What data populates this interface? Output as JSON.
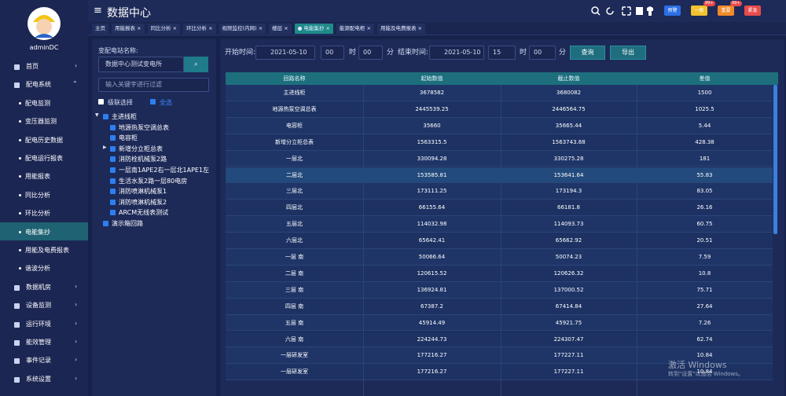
{
  "sidebar": {
    "username": "adminDC",
    "menu": [
      {
        "label": "首页"
      },
      {
        "label": "配电系统",
        "children": [
          "配电监测",
          "变压器监测",
          "配电历史数据",
          "配电运行报表",
          "用能报表",
          "同比分析",
          "环比分析",
          "电能集抄",
          "用能及电费报表",
          "谐波分析"
        ]
      },
      {
        "label": "数据机房"
      },
      {
        "label": "设备监测"
      },
      {
        "label": "运行环境"
      },
      {
        "label": "能效管理"
      },
      {
        "label": "事件记录"
      },
      {
        "label": "系统设置"
      }
    ]
  },
  "topbar": {
    "title": "数据中心",
    "buttons": [
      {
        "label": "预警"
      },
      {
        "label": "一般",
        "badge": "99+"
      },
      {
        "label": "重要",
        "badge": "99+"
      },
      {
        "label": "紧急"
      }
    ]
  },
  "tabs": [
    "主页",
    "用能报表",
    "同比分析",
    "环比分析",
    "视频监控(内网)",
    "楼层",
    "电能集抄",
    "能源配电柜",
    "用能及电费报表"
  ],
  "station_panel": {
    "label": "变配电站名称:",
    "station": "数据中心测试变电所",
    "filter_placeholder": "输入关键字进行过滤",
    "cascade": "级联选择",
    "select_all": "全选",
    "tree": [
      {
        "label": "主进线柜",
        "children": [
          "地源热泵空调总表",
          "电容柜",
          "新增分立柜总表",
          "消防栓机械泵2路",
          "一层南1APE2右一层北1APE1左",
          "生活水泵2路一层80电房",
          "消防喷淋机械泵1",
          "消防喷淋机械泵2",
          "ARCM无线表测试"
        ]
      },
      {
        "label": "演示箱回路",
        "children": []
      }
    ]
  },
  "query": {
    "start_label": "开始时间:",
    "start_date": "2021-05-10",
    "start_hour": "00",
    "hour_unit": "时",
    "start_minute": "00",
    "minute_unit": "分",
    "end_label": "结束时间:",
    "end_date": "2021-05-10",
    "end_hour": "15",
    "end_minute": "00",
    "search": "查询",
    "export": "导出"
  },
  "table": {
    "headers": [
      "回路名称",
      "起始数值",
      "截止数值",
      "差值"
    ],
    "rows": [
      [
        "主进线柜",
        "3678582",
        "3680082",
        "1500"
      ],
      [
        "地源热泵空调总表",
        "2445539.25",
        "2446564.75",
        "1025.5"
      ],
      [
        "电容柜",
        "35660",
        "35665.44",
        "5.44"
      ],
      [
        "新增分立柜总表",
        "1563315.5",
        "1563743.88",
        "428.38"
      ],
      [
        "一层北",
        "330094.28",
        "330275.28",
        "181"
      ],
      [
        "二层北",
        "153585.81",
        "153641.64",
        "55.83"
      ],
      [
        "三层北",
        "173111.25",
        "173194.3",
        "83.05"
      ],
      [
        "四层北",
        "66155.64",
        "66181.8",
        "26.16"
      ],
      [
        "五层北",
        "114032.98",
        "114093.73",
        "60.75"
      ],
      [
        "六层北",
        "65642.41",
        "65662.92",
        "20.51"
      ],
      [
        "一层 南",
        "50066.64",
        "50074.23",
        "7.59"
      ],
      [
        "二层 南",
        "120615.52",
        "120626.32",
        "10.8"
      ],
      [
        "三层 南",
        "136924.81",
        "137000.52",
        "75.71"
      ],
      [
        "四层 南",
        "67387.2",
        "67414.84",
        "27.64"
      ],
      [
        "五层 南",
        "45914.49",
        "45921.75",
        "7.26"
      ],
      [
        "六层 南",
        "224244.73",
        "224307.47",
        "62.74"
      ],
      [
        "一层研发室",
        "177216.27",
        "177227.11",
        "10.84"
      ],
      [
        "一层研发室",
        "177216.27",
        "177227.11",
        "10.84"
      ]
    ]
  },
  "watermark": {
    "title": "激活 Windows",
    "subtitle": "转到\"设置\"以激活 Windows。"
  }
}
